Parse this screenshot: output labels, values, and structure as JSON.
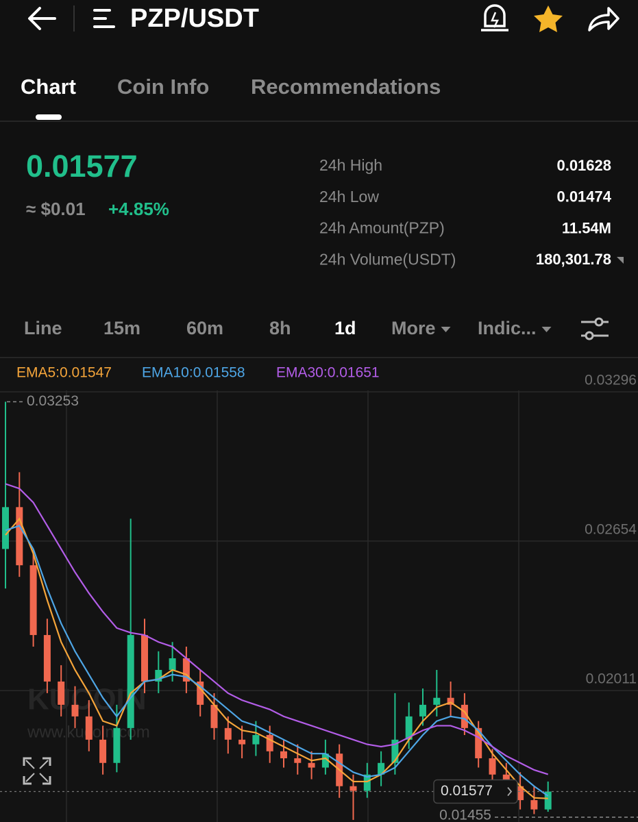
{
  "header": {
    "title": "PZP/USDT"
  },
  "tabs": [
    "Chart",
    "Coin Info",
    "Recommendations"
  ],
  "ticker": {
    "price": "0.01577",
    "fiat": "≈ $0.01",
    "change": "+4.85%",
    "stats": [
      [
        "24h High",
        "0.01628"
      ],
      [
        "24h Low",
        "0.01474"
      ],
      [
        "24h Amount(PZP)",
        "11.54M"
      ],
      [
        "24h Volume(USDT)",
        "180,301.78"
      ]
    ]
  },
  "intervals": [
    "Line",
    "15m",
    "60m",
    "8h",
    "1d",
    "More",
    "Indic..."
  ],
  "watermark": [
    "KUCOIN",
    "www.kucoin.com"
  ],
  "chart_data": {
    "type": "candlestick",
    "ylim": [
      0.01446,
      0.03449
    ],
    "yticks": [
      0.02011,
      0.02654,
      0.03296
    ],
    "up_color": "#21bf8b",
    "down_color": "#f0684f",
    "open": [
      0.0262,
      0.028,
      0.0255,
      0.0225,
      0.0205,
      0.0195,
      0.019,
      0.018,
      0.017,
      0.0185,
      0.0225,
      0.0205,
      0.021,
      0.0215,
      0.0205,
      0.0195,
      0.0185,
      0.018,
      0.0178,
      0.0182,
      0.0175,
      0.0172,
      0.017,
      0.0168,
      0.0174,
      0.016,
      0.0158,
      0.0165,
      0.017,
      0.018,
      0.019,
      0.0195,
      0.0198,
      0.0195,
      0.0185,
      0.0172,
      0.0165,
      0.016,
      0.0154,
      0.015
    ],
    "high": [
      0.03253,
      0.0295,
      0.0262,
      0.0232,
      0.0212,
      0.0203,
      0.0197,
      0.0186,
      0.0195,
      0.0275,
      0.0232,
      0.0218,
      0.0222,
      0.022,
      0.021,
      0.02,
      0.019,
      0.0186,
      0.0188,
      0.0186,
      0.018,
      0.0178,
      0.0175,
      0.018,
      0.0178,
      0.0165,
      0.017,
      0.0175,
      0.02,
      0.0196,
      0.0202,
      0.021,
      0.0205,
      0.02,
      0.0188,
      0.0176,
      0.017,
      0.0166,
      0.016,
      0.0162
    ],
    "low": [
      0.0245,
      0.025,
      0.022,
      0.02,
      0.019,
      0.0185,
      0.0175,
      0.0165,
      0.0166,
      0.018,
      0.02,
      0.02,
      0.0205,
      0.02,
      0.019,
      0.018,
      0.0174,
      0.0172,
      0.0173,
      0.017,
      0.0168,
      0.0165,
      0.0163,
      0.0165,
      0.0155,
      0.01455,
      0.0155,
      0.016,
      0.0165,
      0.0176,
      0.0186,
      0.019,
      0.019,
      0.0182,
      0.0168,
      0.016,
      0.0156,
      0.015,
      0.0148,
      0.0149
    ],
    "close": [
      0.028,
      0.0255,
      0.0225,
      0.0205,
      0.0195,
      0.019,
      0.018,
      0.017,
      0.0185,
      0.0225,
      0.0205,
      0.021,
      0.0215,
      0.0205,
      0.0195,
      0.0185,
      0.018,
      0.0178,
      0.0182,
      0.0175,
      0.0172,
      0.017,
      0.0168,
      0.0174,
      0.016,
      0.0158,
      0.0165,
      0.017,
      0.018,
      0.019,
      0.0195,
      0.0198,
      0.0195,
      0.0185,
      0.0172,
      0.0165,
      0.016,
      0.0154,
      0.015,
      0.01577
    ],
    "series": [
      {
        "name": "EMA5:0.01547",
        "color": "#f5a53a",
        "values": [
          0.0268,
          0.0275,
          0.026,
          0.024,
          0.0222,
          0.021,
          0.02,
          0.0188,
          0.0186,
          0.02,
          0.0205,
          0.0206,
          0.021,
          0.0208,
          0.0202,
          0.0195,
          0.0188,
          0.0184,
          0.0183,
          0.018,
          0.0177,
          0.0174,
          0.0171,
          0.0172,
          0.0167,
          0.0162,
          0.0162,
          0.0165,
          0.0171,
          0.018,
          0.0188,
          0.0194,
          0.0196,
          0.0192,
          0.0183,
          0.0174,
          0.0167,
          0.016,
          0.0155,
          0.01547
        ]
      },
      {
        "name": "EMA10:0.01558",
        "color": "#4ea6e6",
        "values": [
          0.027,
          0.0272,
          0.0262,
          0.0245,
          0.023,
          0.0218,
          0.0208,
          0.0198,
          0.019,
          0.0198,
          0.0205,
          0.0206,
          0.0208,
          0.0207,
          0.0203,
          0.0198,
          0.0193,
          0.0188,
          0.0186,
          0.0183,
          0.018,
          0.0177,
          0.0174,
          0.0174,
          0.017,
          0.0166,
          0.0164,
          0.0165,
          0.0168,
          0.0175,
          0.0182,
          0.0188,
          0.019,
          0.0189,
          0.0184,
          0.0177,
          0.0171,
          0.0165,
          0.016,
          0.01558
        ]
      },
      {
        "name": "EMA30:0.01651",
        "color": "#b35de8",
        "values": [
          0.029,
          0.0288,
          0.0282,
          0.0272,
          0.0262,
          0.0252,
          0.0243,
          0.0235,
          0.0228,
          0.0226,
          0.0225,
          0.0222,
          0.022,
          0.0215,
          0.021,
          0.0205,
          0.02,
          0.0197,
          0.0195,
          0.0193,
          0.019,
          0.0188,
          0.0186,
          0.0184,
          0.0182,
          0.018,
          0.0178,
          0.0177,
          0.0178,
          0.0181,
          0.0184,
          0.0186,
          0.0186,
          0.0184,
          0.0181,
          0.0177,
          0.0173,
          0.017,
          0.0167,
          0.01651
        ]
      }
    ]
  }
}
